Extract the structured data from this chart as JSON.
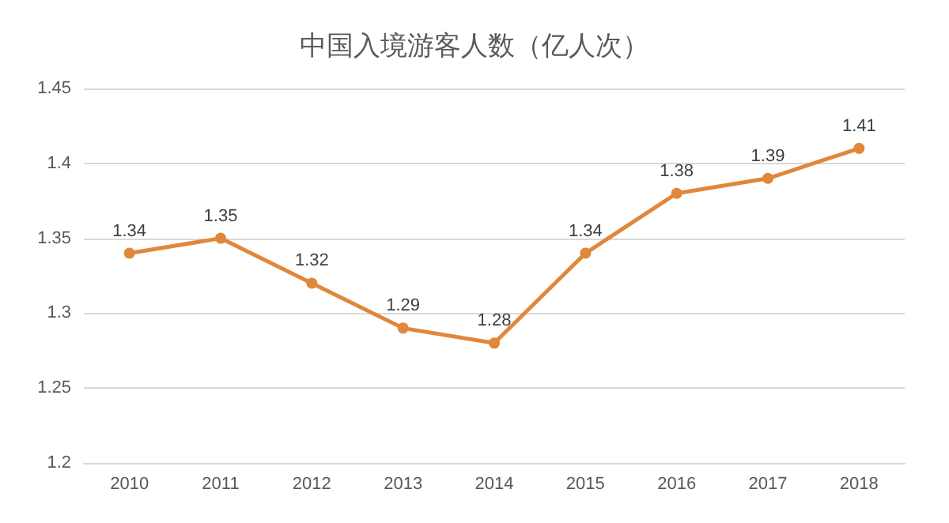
{
  "chart_data": {
    "type": "line",
    "title": "中国入境游客人数（亿人次）",
    "categories": [
      "2010",
      "2011",
      "2012",
      "2013",
      "2014",
      "2015",
      "2016",
      "2017",
      "2018"
    ],
    "series": [
      {
        "color": "#e0883a",
        "values": [
          1.34,
          1.35,
          1.32,
          1.29,
          1.28,
          1.34,
          1.38,
          1.39,
          1.41
        ]
      }
    ],
    "ylim": [
      1.2,
      1.45
    ],
    "yticks": [
      1.2,
      1.25,
      1.3,
      1.35,
      1.4,
      1.45
    ],
    "grid": "y",
    "marker": "circle",
    "line_style": "solid",
    "data_labels": true
  }
}
